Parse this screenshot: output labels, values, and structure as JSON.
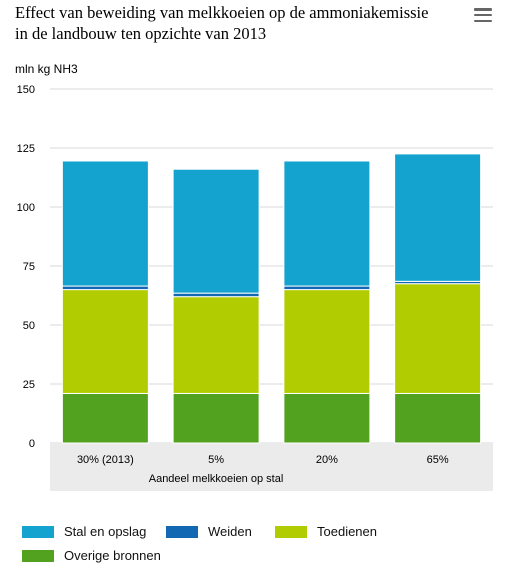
{
  "title_line1": "Effect van beweiding van melkkoeien op de ammoniakemissie",
  "title_line2": "in de landbouw ten opzichte van 2013",
  "menu_icon": "hamburger-menu-icon",
  "chart_data": {
    "type": "bar",
    "stacked": true,
    "ylabel": "mln kg NH3",
    "xlabel": "Aandeel melkkoeien op stal",
    "ylim": [
      0,
      150
    ],
    "yticks": [
      0,
      25,
      50,
      75,
      100,
      125,
      150
    ],
    "categories": [
      "30% (2013)",
      "5%",
      "20%",
      "65%"
    ],
    "series": [
      {
        "name": "Overige bronnen",
        "color": "#52a21f",
        "values": [
          21,
          21,
          21,
          21
        ]
      },
      {
        "name": "Toedienen",
        "color": "#b2cc02",
        "values": [
          44,
          41,
          44,
          46.5
        ]
      },
      {
        "name": "Weiden",
        "color": "#1368b3",
        "values": [
          1.5,
          1.5,
          1.5,
          1
        ]
      },
      {
        "name": "Stal en opslag",
        "color": "#14a3cf",
        "values": [
          53,
          52.5,
          53,
          54
        ]
      }
    ],
    "grid": true,
    "legend_position": "bottom",
    "legend_order": [
      "Stal en opslag",
      "Weiden",
      "Toedienen",
      "Overige bronnen"
    ]
  }
}
